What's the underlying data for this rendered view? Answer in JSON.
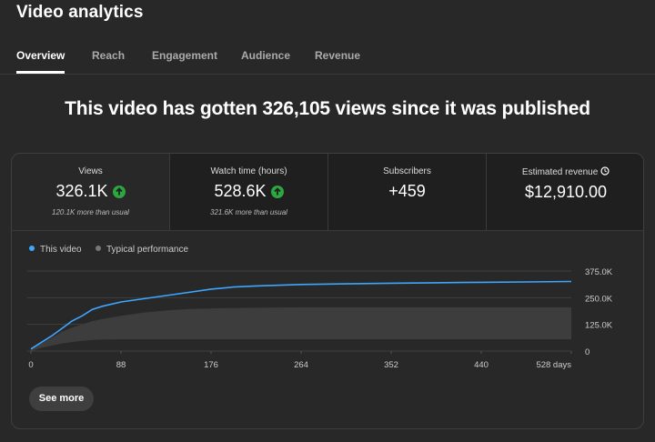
{
  "header": {
    "title": "Video analytics"
  },
  "tabs": [
    "Overview",
    "Reach",
    "Engagement",
    "Audience",
    "Revenue"
  ],
  "headline": "This video has gotten 326,105 views since it was published",
  "metrics": [
    {
      "label": "Views",
      "value": "326.1K",
      "note": "120.1K more than usual"
    },
    {
      "label": "Watch time (hours)",
      "value": "528.6K",
      "note": "321.6K more than usual"
    },
    {
      "label": "Subscribers",
      "value": "+459"
    },
    {
      "label": "Estimated revenue",
      "value": "$12,910.00"
    }
  ],
  "chart_data": {
    "type": "line",
    "x": [
      0,
      10,
      20,
      30,
      40,
      50,
      60,
      70,
      88,
      110,
      132,
      154,
      176,
      198,
      220,
      264,
      308,
      352,
      396,
      440,
      484,
      528
    ],
    "series": [
      {
        "name": "This video",
        "color": "#3ea6ff",
        "values": [
          10000,
          40000,
          70000,
          105000,
          140000,
          165000,
          195000,
          210000,
          230000,
          245000,
          260000,
          275000,
          290000,
          300000,
          305000,
          312000,
          315000,
          318000,
          320000,
          322000,
          324000,
          326000
        ]
      },
      {
        "name": "Typical performance",
        "color": "#3d3d3d",
        "values": [
          10000,
          35000,
          60000,
          90000,
          110000,
          125000,
          140000,
          150000,
          165000,
          180000,
          190000,
          197000,
          200000,
          202000,
          203000,
          205000,
          205000,
          205000,
          205000,
          205000,
          205000,
          205000
        ],
        "lower": [
          0,
          15000,
          25000,
          35000,
          42000,
          48000,
          52000,
          54000,
          55000,
          55000,
          55000,
          55000,
          55000,
          55000,
          55000,
          55000,
          55000,
          55000,
          55000,
          55000,
          55000,
          55000
        ]
      }
    ],
    "xlim": [
      0,
      528
    ],
    "xticks": [
      0,
      88,
      176,
      264,
      352,
      440,
      {
        "value": 528,
        "label": "528 days"
      }
    ],
    "ylim": [
      0,
      375000
    ],
    "yticks": [
      0,
      {
        "value": 125000,
        "label": "125.0K"
      },
      {
        "value": 250000,
        "label": "250.0K"
      },
      {
        "value": 375000,
        "label": "375.0K"
      }
    ],
    "grid": true
  },
  "button": "See more"
}
